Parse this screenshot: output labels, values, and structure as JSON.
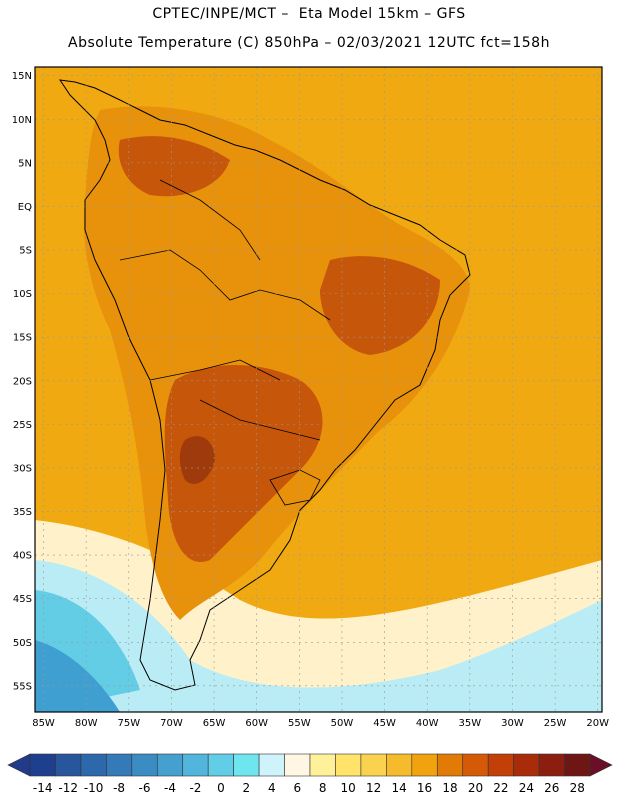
{
  "header": {
    "line1": "CPTEC/INPE/MCT –  Eta Model 15km – GFS",
    "line2": "Absolute Temperature (C) 850hPa – 02/03/2021 12UTC fct=158h"
  },
  "map": {
    "lat_labels": [
      "15N",
      "10N",
      "5N",
      "EQ",
      "5S",
      "10S",
      "15S",
      "20S",
      "25S",
      "30S",
      "35S",
      "40S",
      "45S",
      "50S",
      "55S"
    ],
    "lon_labels": [
      "85W",
      "80W",
      "75W",
      "70W",
      "65W",
      "60W",
      "55W",
      "50W",
      "45W",
      "40W",
      "35W",
      "30W",
      "25W",
      "20W"
    ],
    "lat_values": [
      15,
      10,
      5,
      0,
      -5,
      -10,
      -15,
      -20,
      -25,
      -30,
      -35,
      -40,
      -45,
      -50,
      -55
    ],
    "lon_values": [
      -85,
      -80,
      -75,
      -70,
      -65,
      -60,
      -55,
      -50,
      -45,
      -40,
      -35,
      -30,
      -25,
      -20
    ]
  },
  "colorbar": {
    "labels": [
      "-14",
      "-12",
      "-10",
      "-8",
      "-6",
      "-4",
      "-2",
      "0",
      "2",
      "4",
      "6",
      "8",
      "10",
      "12",
      "14",
      "16",
      "18",
      "20",
      "22",
      "24",
      "26",
      "28"
    ],
    "colors": [
      "#1d3f8e",
      "#27569c",
      "#2e68ac",
      "#3479b8",
      "#3c8cc4",
      "#45a0d0",
      "#52b6dc",
      "#62cde6",
      "#6fe6ef",
      "#cff3fb",
      "#fff7e3",
      "#fff19a",
      "#ffe36a",
      "#fbd24f",
      "#f5bb2c",
      "#f0a30e",
      "#e27b05",
      "#d55a08",
      "#c24008",
      "#a82c0a",
      "#8c1e10",
      "#6e1613"
    ],
    "under_color": "#223a8a",
    "over_color": "#6a0f28"
  },
  "regions": {
    "ocean_base": "#f1a912",
    "land_base": "#e8920c",
    "hot_core": "#c6560a",
    "very_hot": "#9e3a0c",
    "cold_south": "#64cde6",
    "cool_south": "#b9ecf4",
    "pale": "#fff1c9"
  }
}
